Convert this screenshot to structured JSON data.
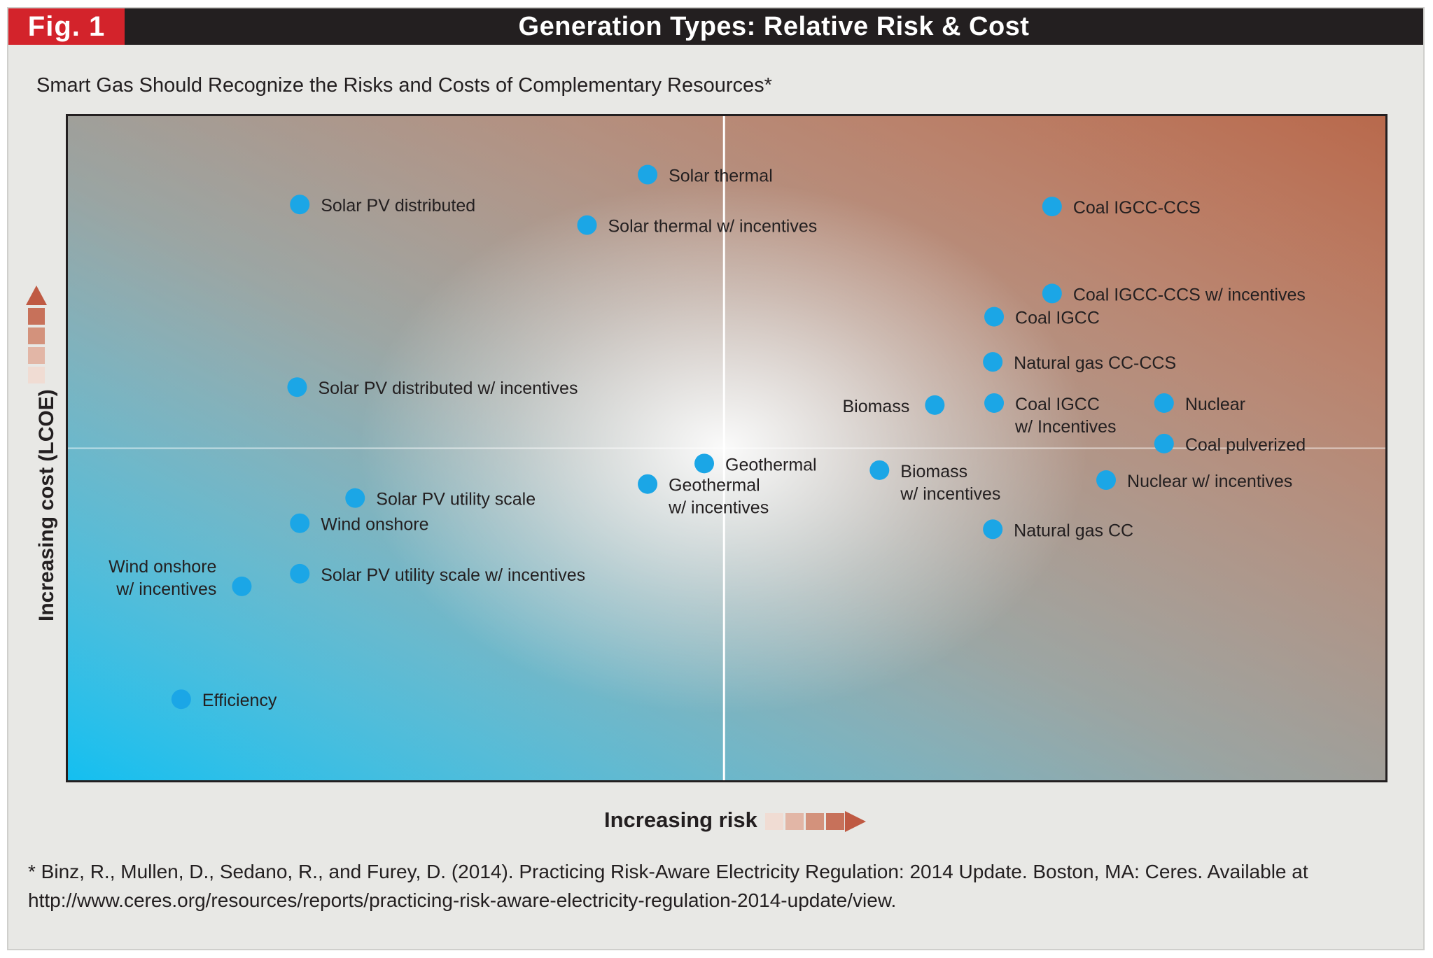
{
  "header": {
    "fig_label": "Fig. 1",
    "title": "Generation Types: Relative Risk & Cost"
  },
  "subtitle": "Smart Gas Should Recognize the Risks and Costs of Complementary Resources*",
  "colors": {
    "header_bg": "#231f20",
    "fig_label_bg": "#d3232b",
    "point": "#1ba6e6",
    "low_corner": "#14bff0",
    "high_corner": "#b8694c",
    "neutral_corner": "#8f9b9c",
    "arrow": "#bf5a43"
  },
  "chart_data": {
    "type": "scatter",
    "title": "",
    "xlabel": "Increasing risk",
    "ylabel": "Increasing cost (LCOE)",
    "xlim": [
      0,
      100
    ],
    "ylim": [
      0,
      100
    ],
    "grid": false,
    "quadrant_divider": {
      "x": 49.8,
      "y": 50
    },
    "points": [
      {
        "label": [
          "Solar thermal"
        ],
        "x": 44.0,
        "y": 91.2,
        "label_side": "right"
      },
      {
        "label": [
          "Solar PV distributed"
        ],
        "x": 17.6,
        "y": 86.7,
        "label_side": "right"
      },
      {
        "label": [
          "Solar thermal w/ incentives"
        ],
        "x": 39.4,
        "y": 83.6,
        "label_side": "right"
      },
      {
        "label": [
          "Coal IGCC-CCS"
        ],
        "x": 74.7,
        "y": 86.4,
        "label_side": "right"
      },
      {
        "label": [
          "Coal IGCC-CCS w/ incentives"
        ],
        "x": 74.7,
        "y": 73.3,
        "label_side": "right"
      },
      {
        "label": [
          "Coal IGCC"
        ],
        "x": 70.3,
        "y": 69.8,
        "label_side": "right"
      },
      {
        "label": [
          "Natural gas CC-CCS"
        ],
        "x": 70.2,
        "y": 63.0,
        "label_side": "right"
      },
      {
        "label": [
          "Solar PV distributed w/ incentives"
        ],
        "x": 17.4,
        "y": 59.2,
        "label_side": "right"
      },
      {
        "label": [
          "Biomass"
        ],
        "x": 65.8,
        "y": 56.5,
        "label_side": "left"
      },
      {
        "label": [
          "Coal IGCC",
          "w/ Incentives"
        ],
        "x": 70.3,
        "y": 56.8,
        "label_side": "right"
      },
      {
        "label": [
          "Nuclear"
        ],
        "x": 83.2,
        "y": 56.8,
        "label_side": "right"
      },
      {
        "label": [
          "Coal pulverized"
        ],
        "x": 83.2,
        "y": 50.7,
        "label_side": "right"
      },
      {
        "label": [
          "Geothermal"
        ],
        "x": 48.3,
        "y": 47.7,
        "label_side": "right"
      },
      {
        "label": [
          "Biomass",
          "w/ incentives"
        ],
        "x": 61.6,
        "y": 46.7,
        "label_side": "right"
      },
      {
        "label": [
          "Geothermal",
          "w/ incentives"
        ],
        "x": 44.0,
        "y": 44.6,
        "label_side": "right"
      },
      {
        "label": [
          "Nuclear w/ incentives"
        ],
        "x": 78.8,
        "y": 45.2,
        "label_side": "right"
      },
      {
        "label": [
          "Solar PV utility scale"
        ],
        "x": 21.8,
        "y": 42.5,
        "label_side": "right"
      },
      {
        "label": [
          "Wind onshore"
        ],
        "x": 17.6,
        "y": 38.7,
        "label_side": "right"
      },
      {
        "label": [
          "Natural gas CC"
        ],
        "x": 70.2,
        "y": 37.8,
        "label_side": "right"
      },
      {
        "label": [
          "Solar PV utility scale w/ incentives"
        ],
        "x": 17.6,
        "y": 31.1,
        "label_side": "right"
      },
      {
        "label": [
          "Wind onshore",
          "w/ incentives"
        ],
        "x": 13.2,
        "y": 29.2,
        "label_side": "left"
      },
      {
        "label": [
          "Efficiency"
        ],
        "x": 8.6,
        "y": 12.2,
        "label_side": "right"
      }
    ]
  },
  "footnote": {
    "line1": "* Binz, R., Mullen, D., Sedano, R., and Furey, D. (2014). Practicing Risk-Aware Electricity Regulation: 2014 Update. Boston, MA: Ceres. Available at",
    "line2": "http://www.ceres.org/resources/reports/practicing-risk-aware-electricity-regulation-2014-update/view."
  }
}
